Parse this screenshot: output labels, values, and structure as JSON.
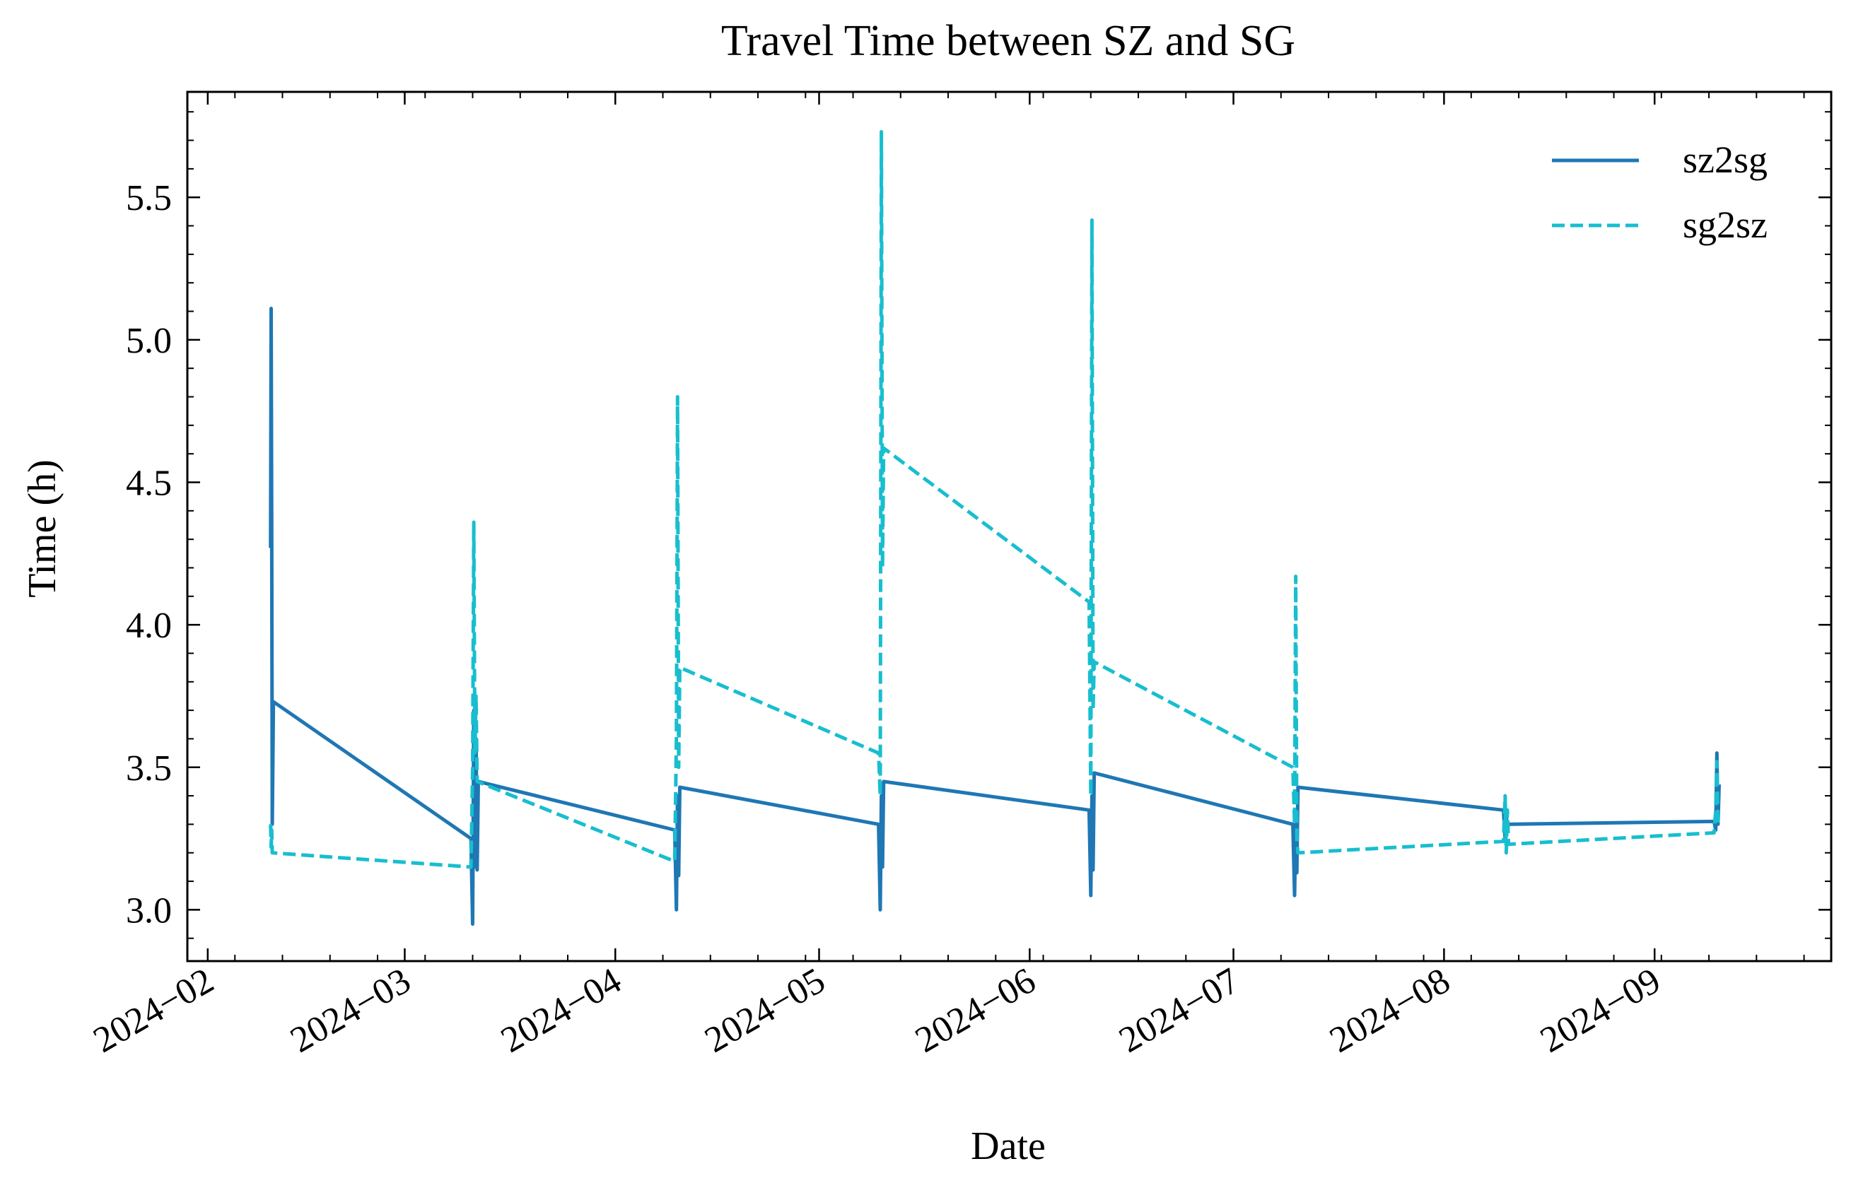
{
  "chart_data": {
    "type": "line",
    "title": "Travel Time between SZ and SG",
    "xlabel": "Date",
    "ylabel": "Time (h)",
    "xlim": [
      "2024-01-29",
      "2024-09-27"
    ],
    "ylim": [
      2.82,
      5.87
    ],
    "x_ticks": [
      "2024-02-01",
      "2024-03-01",
      "2024-04-01",
      "2024-05-01",
      "2024-06-01",
      "2024-07-01",
      "2024-08-01",
      "2024-09-01"
    ],
    "x_tick_labels": [
      "2024−02",
      "2024−03",
      "2024−04",
      "2024−05",
      "2024−06",
      "2024−07",
      "2024−08",
      "2024−09"
    ],
    "y_ticks": [
      3.0,
      3.5,
      4.0,
      4.5,
      5.0,
      5.5
    ],
    "y_tick_labels": [
      "3.0",
      "3.5",
      "4.0",
      "4.5",
      "5.0",
      "5.5"
    ],
    "grid": false,
    "legend_position": "top-right",
    "series": [
      {
        "name": "sz2sg",
        "color": "#1f77b4",
        "style": "solid",
        "points": [
          [
            "2024-02-10T06:00",
            4.27
          ],
          [
            "2024-02-10T08:00",
            5.11
          ],
          [
            "2024-02-10T10:00",
            4.35
          ],
          [
            "2024-02-10T12:00",
            3.3
          ],
          [
            "2024-02-10T16:00",
            3.73
          ],
          [
            "2024-03-10T18:00",
            3.25
          ],
          [
            "2024-03-11T00:00",
            2.95
          ],
          [
            "2024-03-11T04:00",
            3.7
          ],
          [
            "2024-03-11T08:00",
            3.15
          ],
          [
            "2024-03-11T12:00",
            3.6
          ],
          [
            "2024-03-11T16:00",
            3.14
          ],
          [
            "2024-03-11T20:00",
            3.45
          ],
          [
            "2024-04-09T18:00",
            3.28
          ],
          [
            "2024-04-10T00:00",
            3.0
          ],
          [
            "2024-04-10T04:00",
            3.4
          ],
          [
            "2024-04-10T08:00",
            3.12
          ],
          [
            "2024-04-10T12:00",
            3.43
          ],
          [
            "2024-05-09T18:00",
            3.3
          ],
          [
            "2024-05-10T00:00",
            3.0
          ],
          [
            "2024-05-10T04:00",
            3.4
          ],
          [
            "2024-05-10T08:00",
            3.15
          ],
          [
            "2024-05-10T12:00",
            3.45
          ],
          [
            "2024-06-09T18:00",
            3.35
          ],
          [
            "2024-06-10T00:00",
            3.05
          ],
          [
            "2024-06-10T04:00",
            3.4
          ],
          [
            "2024-06-10T08:00",
            3.14
          ],
          [
            "2024-06-10T12:00",
            3.48
          ],
          [
            "2024-07-09T18:00",
            3.3
          ],
          [
            "2024-07-10T00:00",
            3.05
          ],
          [
            "2024-07-10T04:00",
            3.3
          ],
          [
            "2024-07-10T08:00",
            3.13
          ],
          [
            "2024-07-10T12:00",
            3.43
          ],
          [
            "2024-08-09T18:00",
            3.35
          ],
          [
            "2024-08-10T00:00",
            3.25
          ],
          [
            "2024-08-10T04:00",
            3.33
          ],
          [
            "2024-08-10T08:00",
            3.28
          ],
          [
            "2024-08-10T12:00",
            3.3
          ],
          [
            "2024-09-09T18:00",
            3.31
          ],
          [
            "2024-09-10T00:00",
            3.28
          ],
          [
            "2024-09-10T04:00",
            3.55
          ],
          [
            "2024-09-10T08:00",
            3.3
          ],
          [
            "2024-09-10T12:00",
            3.44
          ]
        ]
      },
      {
        "name": "sg2sz",
        "color": "#17becf",
        "style": "dashed",
        "points": [
          [
            "2024-02-10T06:00",
            3.3
          ],
          [
            "2024-02-10T08:00",
            3.22
          ],
          [
            "2024-02-10T10:00",
            3.28
          ],
          [
            "2024-02-10T12:00",
            3.2
          ],
          [
            "2024-03-10T18:00",
            3.15
          ],
          [
            "2024-03-11T00:00",
            3.5
          ],
          [
            "2024-03-11T04:00",
            4.36
          ],
          [
            "2024-03-11T08:00",
            3.55
          ],
          [
            "2024-03-11T12:00",
            3.75
          ],
          [
            "2024-03-11T16:00",
            3.45
          ],
          [
            "2024-04-09T18:00",
            3.17
          ],
          [
            "2024-04-10T00:00",
            3.6
          ],
          [
            "2024-04-10T04:00",
            4.8
          ],
          [
            "2024-04-10T08:00",
            3.5
          ],
          [
            "2024-04-10T12:00",
            3.85
          ],
          [
            "2024-05-09T18:00",
            3.55
          ],
          [
            "2024-05-10T00:00",
            3.4
          ],
          [
            "2024-05-10T04:00",
            5.73
          ],
          [
            "2024-05-10T08:00",
            4.2
          ],
          [
            "2024-05-10T12:00",
            4.62
          ],
          [
            "2024-06-09T18:00",
            4.08
          ],
          [
            "2024-06-10T00:00",
            3.4
          ],
          [
            "2024-06-10T04:00",
            5.42
          ],
          [
            "2024-06-10T08:00",
            3.7
          ],
          [
            "2024-06-10T12:00",
            3.87
          ],
          [
            "2024-07-09T18:00",
            3.5
          ],
          [
            "2024-07-10T00:00",
            3.3
          ],
          [
            "2024-07-10T04:00",
            4.17
          ],
          [
            "2024-07-10T08:00",
            3.25
          ],
          [
            "2024-07-10T12:00",
            3.2
          ],
          [
            "2024-08-09T18:00",
            3.24
          ],
          [
            "2024-08-10T00:00",
            3.4
          ],
          [
            "2024-08-10T04:00",
            3.2
          ],
          [
            "2024-08-10T08:00",
            3.35
          ],
          [
            "2024-08-10T12:00",
            3.23
          ],
          [
            "2024-09-09T18:00",
            3.27
          ],
          [
            "2024-09-10T00:00",
            3.35
          ],
          [
            "2024-09-10T04:00",
            3.52
          ],
          [
            "2024-09-10T08:00",
            3.3
          ]
        ]
      }
    ]
  }
}
